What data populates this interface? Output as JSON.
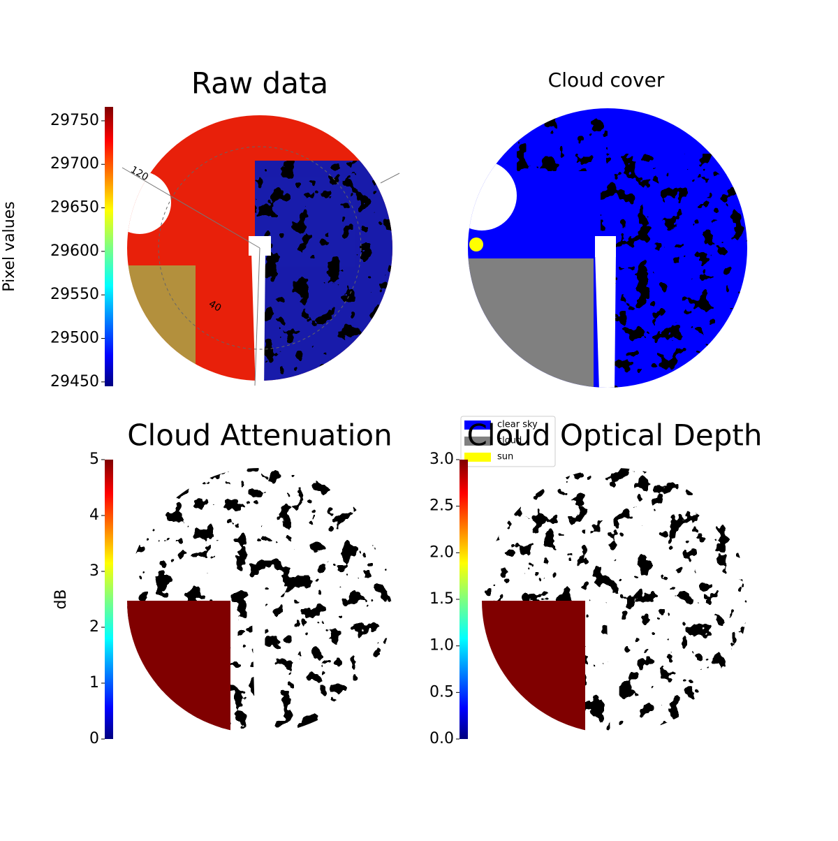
{
  "chart_data": [
    {
      "type": "image",
      "title": "Raw data",
      "colorbar_label": "Pixel values",
      "clim": [
        29445,
        29766
      ],
      "cticks": [
        29450,
        29500,
        29550,
        29600,
        29650,
        29700,
        29750
      ],
      "colormap": "jet",
      "annotations": [
        "120",
        "40"
      ]
    },
    {
      "type": "image",
      "title": "Cloud cover",
      "series": [
        {
          "name": "clear sky",
          "color": "#0000ff"
        },
        {
          "name": "cloud",
          "color": "#808080"
        },
        {
          "name": "sun",
          "color": "#ffff00"
        }
      ],
      "legend": "lower left"
    },
    {
      "type": "image",
      "title": "Cloud Attenuation",
      "colorbar_label": "dB",
      "clim": [
        0,
        5
      ],
      "cticks": [
        0,
        1,
        2,
        3,
        4,
        5
      ],
      "colormap": "jet"
    },
    {
      "type": "image",
      "title": "Cloud Optical Depth",
      "clim": [
        0,
        3
      ],
      "cticks": [
        {
          "value": 0,
          "label": "0.0"
        },
        {
          "value": 0.5,
          "label": "0.5"
        },
        {
          "value": 1,
          "label": "1.0"
        },
        {
          "value": 1.5,
          "label": "1.5"
        },
        {
          "value": 2,
          "label": "2.0"
        },
        {
          "value": 2.5,
          "label": "2.5"
        },
        {
          "value": 3,
          "label": "3.0"
        }
      ],
      "colormap": "jet"
    }
  ]
}
